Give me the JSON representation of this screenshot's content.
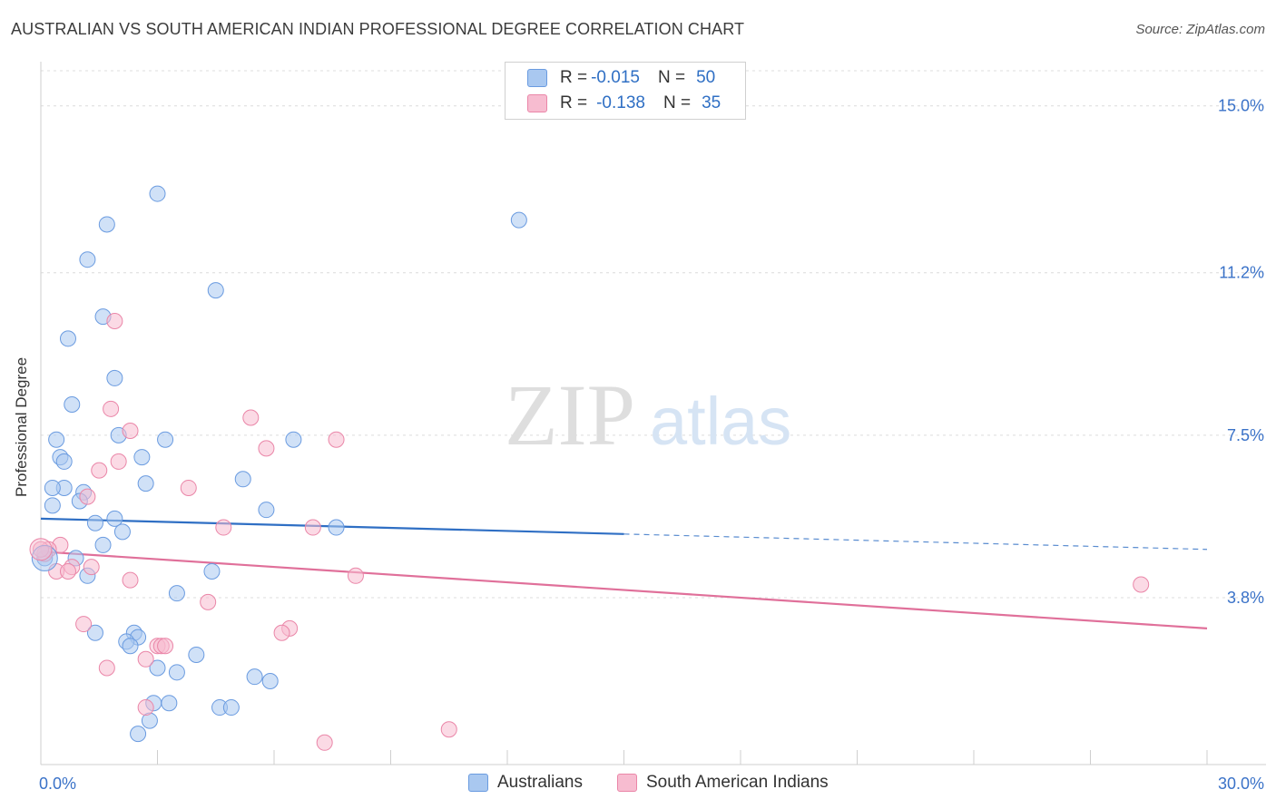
{
  "title": "AUSTRALIAN VS SOUTH AMERICAN INDIAN PROFESSIONAL DEGREE CORRELATION CHART",
  "source": "Source: ZipAtlas.com",
  "watermark": {
    "zip": "ZIP",
    "atlas": "atlas"
  },
  "legend_top": {
    "rows": [
      {
        "r_label": "R =",
        "r_value": "-0.015",
        "n_label": "N =",
        "n_value": "50",
        "color": "#a9c8f0",
        "stroke": "#6a9be0"
      },
      {
        "r_label": "R =",
        "r_value": "-0.138",
        "n_label": "N =",
        "n_value": "35",
        "color": "#f7bcd0",
        "stroke": "#ea86a8"
      }
    ]
  },
  "legend_bottom": [
    {
      "label": "Australians",
      "color": "#a9c8f0",
      "stroke": "#6a9be0"
    },
    {
      "label": "South American Indians",
      "color": "#f7bcd0",
      "stroke": "#ea86a8"
    }
  ],
  "chart_data": {
    "type": "scatter",
    "title": "AUSTRALIAN VS SOUTH AMERICAN INDIAN PROFESSIONAL DEGREE CORRELATION CHART",
    "xlabel": "",
    "ylabel": "Professional Degree",
    "xlim": [
      0,
      30
    ],
    "ylim": [
      0,
      15.8
    ],
    "x_tick_labels": [
      "0.0%",
      "30.0%"
    ],
    "y_ticks": [
      3.8,
      7.5,
      11.2,
      15.0
    ],
    "y_tick_labels": [
      "3.8%",
      "7.5%",
      "11.2%",
      "15.0%"
    ],
    "grid": true,
    "series": [
      {
        "name": "Australians",
        "color": "#a9c8f0",
        "stroke": "#6a9be0",
        "line_color": "#2f6fc4",
        "trend": {
          "x0": 0,
          "y0": 5.6,
          "x1": 15,
          "y1": 5.25,
          "x_dash_end": 30,
          "y_dash_end": 4.9
        },
        "points": [
          [
            3.0,
            13.0
          ],
          [
            1.7,
            12.3
          ],
          [
            12.3,
            12.4
          ],
          [
            1.2,
            11.5
          ],
          [
            4.5,
            10.8
          ],
          [
            1.6,
            10.2
          ],
          [
            0.7,
            9.7
          ],
          [
            1.9,
            8.8
          ],
          [
            0.8,
            8.2
          ],
          [
            0.4,
            7.4
          ],
          [
            2.0,
            7.5
          ],
          [
            3.2,
            7.4
          ],
          [
            6.5,
            7.4
          ],
          [
            0.5,
            7.0
          ],
          [
            0.6,
            6.9
          ],
          [
            2.6,
            7.0
          ],
          [
            2.7,
            6.4
          ],
          [
            5.2,
            6.5
          ],
          [
            0.6,
            6.3
          ],
          [
            1.1,
            6.2
          ],
          [
            0.3,
            6.3
          ],
          [
            1.0,
            6.0
          ],
          [
            0.3,
            5.9
          ],
          [
            5.8,
            5.8
          ],
          [
            1.9,
            5.6
          ],
          [
            1.4,
            5.5
          ],
          [
            2.1,
            5.3
          ],
          [
            7.6,
            5.4
          ],
          [
            1.6,
            5.0
          ],
          [
            0.9,
            4.7
          ],
          [
            1.2,
            4.3
          ],
          [
            4.4,
            4.4
          ],
          [
            3.5,
            3.9
          ],
          [
            1.4,
            3.0
          ],
          [
            2.4,
            3.0
          ],
          [
            2.5,
            2.9
          ],
          [
            2.2,
            2.8
          ],
          [
            2.3,
            2.7
          ],
          [
            4.0,
            2.5
          ],
          [
            3.0,
            2.2
          ],
          [
            3.5,
            2.1
          ],
          [
            5.5,
            2.0
          ],
          [
            5.9,
            1.9
          ],
          [
            2.9,
            1.4
          ],
          [
            3.3,
            1.4
          ],
          [
            4.6,
            1.3
          ],
          [
            4.9,
            1.3
          ],
          [
            2.8,
            1.0
          ],
          [
            2.5,
            0.7
          ],
          [
            0.1,
            4.7
          ]
        ]
      },
      {
        "name": "South American Indians",
        "color": "#f7bcd0",
        "stroke": "#ea86a8",
        "line_color": "#e0709a",
        "trend": {
          "x0": 0,
          "y0": 4.85,
          "x1": 30,
          "y1": 3.1
        },
        "points": [
          [
            1.9,
            10.1
          ],
          [
            1.8,
            8.1
          ],
          [
            5.4,
            7.9
          ],
          [
            2.3,
            7.6
          ],
          [
            7.6,
            7.4
          ],
          [
            5.8,
            7.2
          ],
          [
            2.0,
            6.9
          ],
          [
            1.5,
            6.7
          ],
          [
            3.8,
            6.3
          ],
          [
            1.2,
            6.1
          ],
          [
            4.7,
            5.4
          ],
          [
            7.0,
            5.4
          ],
          [
            0.5,
            5.0
          ],
          [
            0.2,
            4.9
          ],
          [
            0.1,
            4.8
          ],
          [
            0.8,
            4.5
          ],
          [
            1.3,
            4.5
          ],
          [
            0.4,
            4.4
          ],
          [
            0.7,
            4.4
          ],
          [
            8.1,
            4.3
          ],
          [
            2.3,
            4.2
          ],
          [
            4.3,
            3.7
          ],
          [
            1.1,
            3.2
          ],
          [
            6.4,
            3.1
          ],
          [
            6.2,
            3.0
          ],
          [
            3.0,
            2.7
          ],
          [
            3.1,
            2.7
          ],
          [
            3.2,
            2.7
          ],
          [
            2.7,
            2.4
          ],
          [
            1.7,
            2.2
          ],
          [
            2.7,
            1.3
          ],
          [
            10.5,
            0.8
          ],
          [
            7.3,
            0.5
          ],
          [
            28.3,
            4.1
          ],
          [
            0.0,
            4.9
          ]
        ]
      }
    ]
  }
}
